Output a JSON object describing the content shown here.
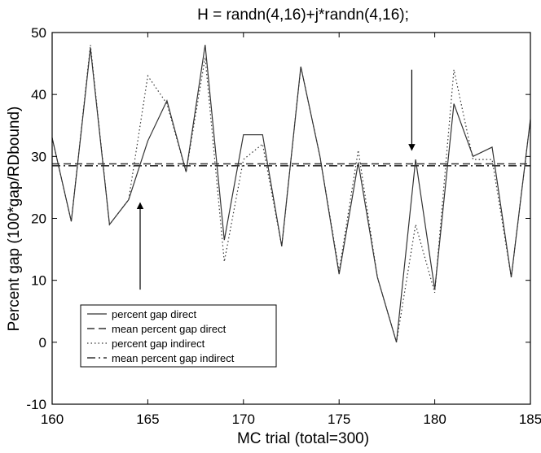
{
  "chart_data": {
    "type": "line",
    "title": "H = randn(4,16)+j*randn(4,16);",
    "xlabel": "MC trial (total=300)",
    "ylabel": "Percent gap (100*gap/RDbound)",
    "xlim": [
      160,
      185
    ],
    "ylim": [
      -10,
      50
    ],
    "x_ticks": [
      160,
      165,
      170,
      175,
      180,
      185
    ],
    "y_ticks": [
      -10,
      0,
      10,
      20,
      30,
      40,
      50
    ],
    "x_tick_labels": [
      "160",
      "165",
      "170",
      "175",
      "180",
      "185"
    ],
    "y_tick_labels": [
      "-10",
      "0",
      "10",
      "20",
      "30",
      "40",
      "50"
    ],
    "grid": false,
    "legend_position": "bottom-left",
    "x": [
      160,
      161,
      162,
      163,
      164,
      165,
      166,
      167,
      168,
      169,
      170,
      171,
      172,
      173,
      174,
      175,
      176,
      177,
      178,
      179,
      180,
      181,
      182,
      183,
      184,
      185
    ],
    "series": [
      {
        "name": "percent gap direct",
        "style": "solid",
        "color": "#333333",
        "values": [
          33,
          19.5,
          47.5,
          19,
          23,
          32.5,
          39,
          27.5,
          48,
          16.5,
          33.5,
          33.5,
          15.5,
          44.5,
          30,
          11,
          29,
          10.5,
          0,
          29.5,
          8.5,
          38.5,
          30,
          31.5,
          10.5,
          36
        ]
      },
      {
        "name": "mean percent gap direct",
        "style": "dashed",
        "color": "#333333",
        "values": [
          28.8,
          28.8,
          28.8,
          28.8,
          28.8,
          28.8,
          28.8,
          28.8,
          28.8,
          28.8,
          28.8,
          28.8,
          28.8,
          28.8,
          28.8,
          28.8,
          28.8,
          28.8,
          28.8,
          28.8,
          28.8,
          28.8,
          28.8,
          28.8,
          28.8,
          28.8
        ]
      },
      {
        "name": "percent gap indirect",
        "style": "dotted",
        "color": "#333333",
        "values": [
          33,
          19.5,
          48,
          19,
          23,
          43,
          38.5,
          27.5,
          46,
          13,
          29.5,
          32,
          15.5,
          44.5,
          30,
          11.5,
          31,
          10.5,
          0,
          19,
          8,
          44,
          29.5,
          29.5,
          10.5,
          36
        ]
      },
      {
        "name": "mean percent gap indirect",
        "style": "dashdot",
        "color": "#333333",
        "values": [
          28.5,
          28.5,
          28.5,
          28.5,
          28.5,
          28.5,
          28.5,
          28.5,
          28.5,
          28.5,
          28.5,
          28.5,
          28.5,
          28.5,
          28.5,
          28.5,
          28.5,
          28.5,
          28.5,
          28.5,
          28.5,
          28.5,
          28.5,
          28.5,
          28.5,
          28.5
        ]
      }
    ],
    "annotations": [
      {
        "type": "arrow",
        "direction": "up",
        "x": 164.6,
        "y_from": 8.5,
        "y_to": 22.5
      },
      {
        "type": "arrow",
        "direction": "down",
        "x": 178.8,
        "y_from": 44,
        "y_to": 31
      }
    ]
  }
}
